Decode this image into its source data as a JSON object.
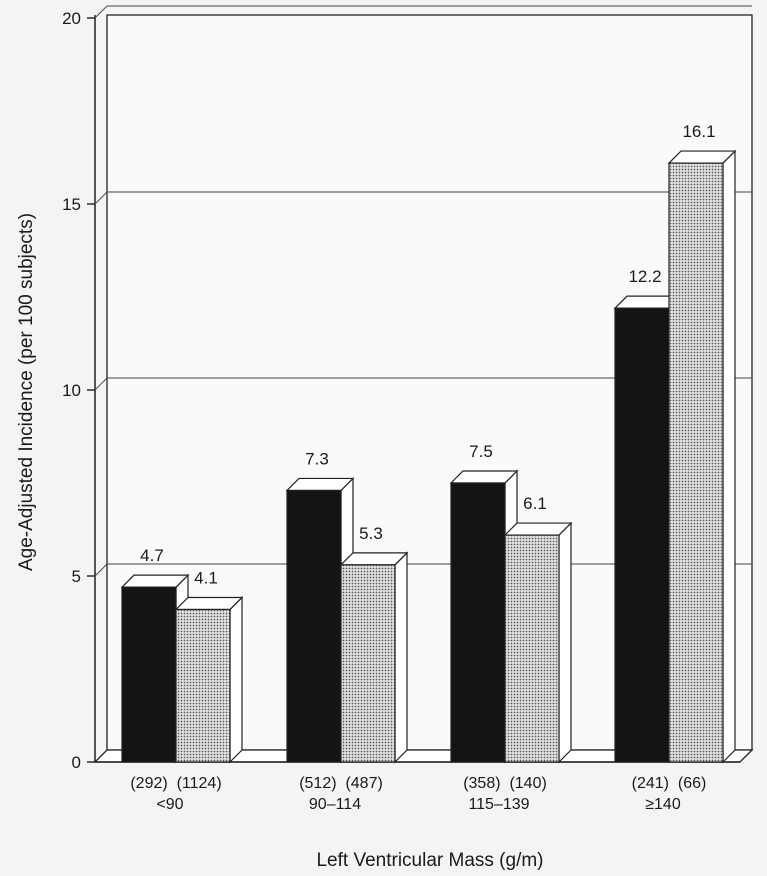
{
  "chart_data": {
    "type": "bar",
    "style": "3d",
    "xlabel": "Left Ventricular Mass (g/m)",
    "ylabel": "Age-Adjusted Incidence (per 100 subjects)",
    "ylim": [
      0,
      20
    ],
    "yticks": [
      "0",
      "5",
      "10",
      "15",
      "20"
    ],
    "grid": true,
    "categories": [
      "<90",
      "90–114",
      "115–139",
      "≥140"
    ],
    "category_labels": [
      {
        "counts": [
          "(292)",
          "(1124)"
        ],
        "range": "<90"
      },
      {
        "counts": [
          "(512)",
          "(487)"
        ],
        "range": "90–114"
      },
      {
        "counts": [
          "(358)",
          "(140)"
        ],
        "range": "115–139"
      },
      {
        "counts": [
          "(241)",
          "(66)"
        ],
        "range": "≥140"
      }
    ],
    "series": [
      {
        "fill": "solid-black",
        "color": "#141414",
        "values": [
          4.7,
          7.3,
          7.5,
          12.2
        ],
        "labels": [
          "4.7",
          "7.3",
          "7.5",
          "12.2"
        ]
      },
      {
        "fill": "dotted-gray",
        "color": "#b4b4b4",
        "values": [
          4.1,
          5.3,
          6.1,
          16.1
        ],
        "labels": [
          "4.1",
          "5.3",
          "6.1",
          "16.1"
        ]
      }
    ]
  }
}
